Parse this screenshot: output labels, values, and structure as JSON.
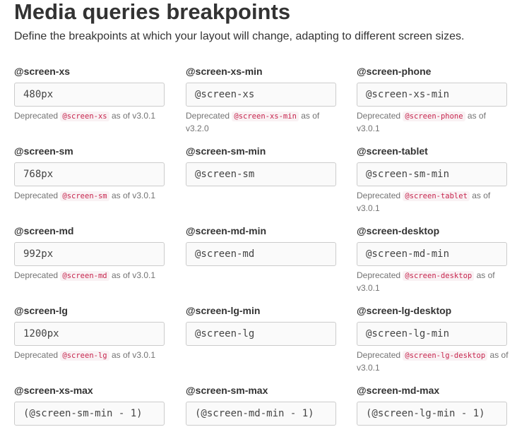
{
  "title": "Media queries breakpoints",
  "description": "Define the breakpoints at which your layout will change, adapting to different screen sizes.",
  "help": {
    "prefix": "Deprecated",
    "suffix": "as of"
  },
  "fields": [
    {
      "label": "@screen-xs",
      "value": "480px",
      "deprecated_var": "@screen-xs",
      "version": "v3.0.1"
    },
    {
      "label": "@screen-xs-min",
      "value": "@screen-xs",
      "deprecated_var": "@screen-xs-min",
      "version": "v3.2.0"
    },
    {
      "label": "@screen-phone",
      "value": "@screen-xs-min",
      "deprecated_var": "@screen-phone",
      "version": "v3.0.1"
    },
    {
      "label": "@screen-sm",
      "value": "768px",
      "deprecated_var": "@screen-sm",
      "version": "v3.0.1"
    },
    {
      "label": "@screen-sm-min",
      "value": "@screen-sm"
    },
    {
      "label": "@screen-tablet",
      "value": "@screen-sm-min",
      "deprecated_var": "@screen-tablet",
      "version": "v3.0.1"
    },
    {
      "label": "@screen-md",
      "value": "992px",
      "deprecated_var": "@screen-md",
      "version": "v3.0.1"
    },
    {
      "label": "@screen-md-min",
      "value": "@screen-md"
    },
    {
      "label": "@screen-desktop",
      "value": "@screen-md-min",
      "deprecated_var": "@screen-desktop",
      "version": "v3.0.1"
    },
    {
      "label": "@screen-lg",
      "value": "1200px",
      "deprecated_var": "@screen-lg",
      "version": "v3.0.1"
    },
    {
      "label": "@screen-lg-min",
      "value": "@screen-lg"
    },
    {
      "label": "@screen-lg-desktop",
      "value": "@screen-lg-min",
      "deprecated_var": "@screen-lg-desktop",
      "version": "v3.0.1"
    },
    {
      "label": "@screen-xs-max",
      "value": "(@screen-sm-min - 1)"
    },
    {
      "label": "@screen-sm-max",
      "value": "(@screen-md-min - 1)"
    },
    {
      "label": "@screen-md-max",
      "value": "(@screen-lg-min - 1)"
    }
  ]
}
